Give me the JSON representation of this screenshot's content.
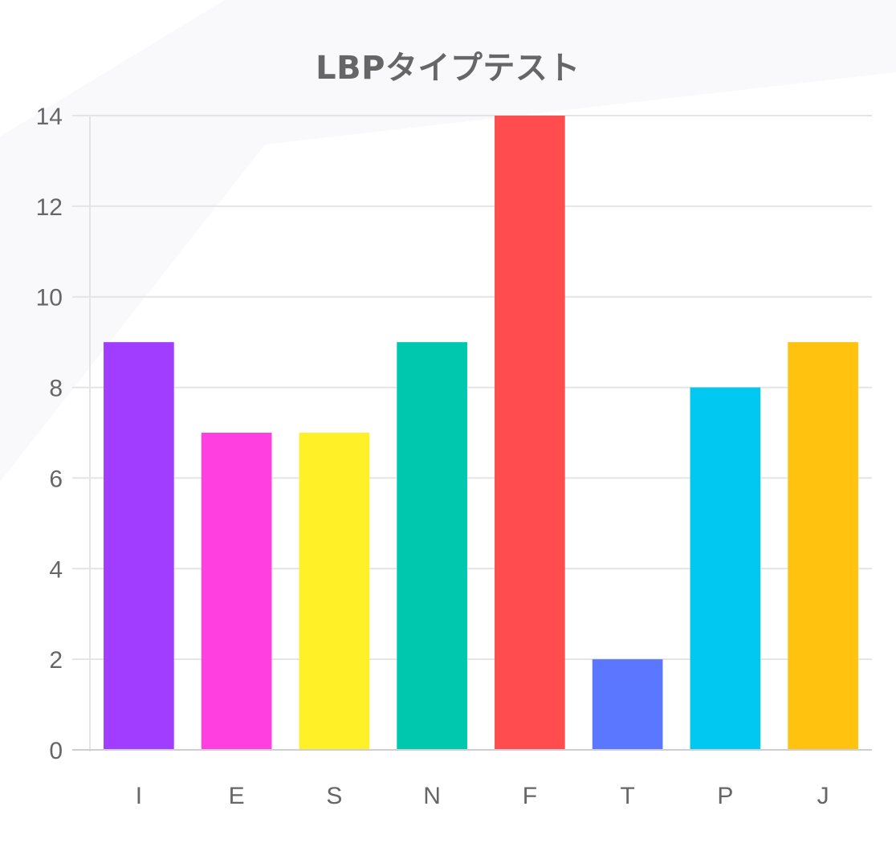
{
  "chart_data": {
    "type": "bar",
    "title": "LBPタイプテスト",
    "categories": [
      "I",
      "E",
      "S",
      "N",
      "F",
      "T",
      "P",
      "J"
    ],
    "values": [
      9,
      7,
      7,
      9,
      14,
      2,
      8,
      9
    ],
    "colors": [
      "#a13dff",
      "#ff3fe0",
      "#fff027",
      "#00c8ae",
      "#ff4d4f",
      "#5b76ff",
      "#00c8f0",
      "#ffc30f"
    ],
    "ylim": [
      0,
      14
    ],
    "yticks": [
      0,
      2,
      4,
      6,
      8,
      10,
      12,
      14
    ],
    "grid": true,
    "legend": "none",
    "xlabel": "",
    "ylabel": ""
  }
}
